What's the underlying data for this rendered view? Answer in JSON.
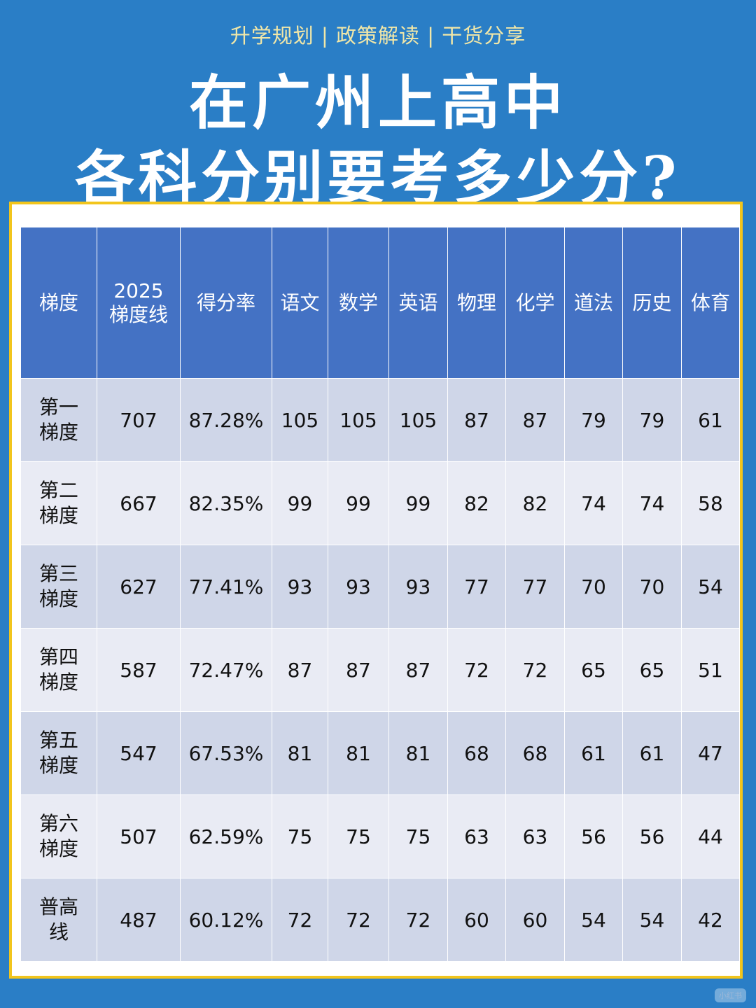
{
  "header": {
    "subtitle": "升学规划 | 政策解读 | 干货分享",
    "title_line1": "在广州上高中",
    "title_line2": "各科分别要考多少分?"
  },
  "table": {
    "columns": [
      "梯度",
      "2025\n梯度线",
      "得分率",
      "语文",
      "数学",
      "英语",
      "物理",
      "化学",
      "道法",
      "历史",
      "体育"
    ],
    "rows": [
      [
        "第一\n梯度",
        "707",
        "87.28%",
        "105",
        "105",
        "105",
        "87",
        "87",
        "79",
        "79",
        "61"
      ],
      [
        "第二\n梯度",
        "667",
        "82.35%",
        "99",
        "99",
        "99",
        "82",
        "82",
        "74",
        "74",
        "58"
      ],
      [
        "第三\n梯度",
        "627",
        "77.41%",
        "93",
        "93",
        "93",
        "77",
        "77",
        "70",
        "70",
        "54"
      ],
      [
        "第四\n梯度",
        "587",
        "72.47%",
        "87",
        "87",
        "87",
        "72",
        "72",
        "65",
        "65",
        "51"
      ],
      [
        "第五\n梯度",
        "547",
        "67.53%",
        "81",
        "81",
        "81",
        "68",
        "68",
        "61",
        "61",
        "47"
      ],
      [
        "第六\n梯度",
        "507",
        "62.59%",
        "75",
        "75",
        "75",
        "63",
        "63",
        "56",
        "56",
        "44"
      ],
      [
        "普高\n线",
        "487",
        "60.12%",
        "72",
        "72",
        "72",
        "60",
        "60",
        "54",
        "54",
        "42"
      ]
    ]
  },
  "colors": {
    "background": "#2a7ec6",
    "header_cell": "#4472c4",
    "row_dark": "#cfd6e8",
    "row_light": "#e9ebf4",
    "cut_score": "#e8141b",
    "panel_border": "#f2c51c",
    "subtitle": "#f1e7a8"
  },
  "watermark": "小红书"
}
